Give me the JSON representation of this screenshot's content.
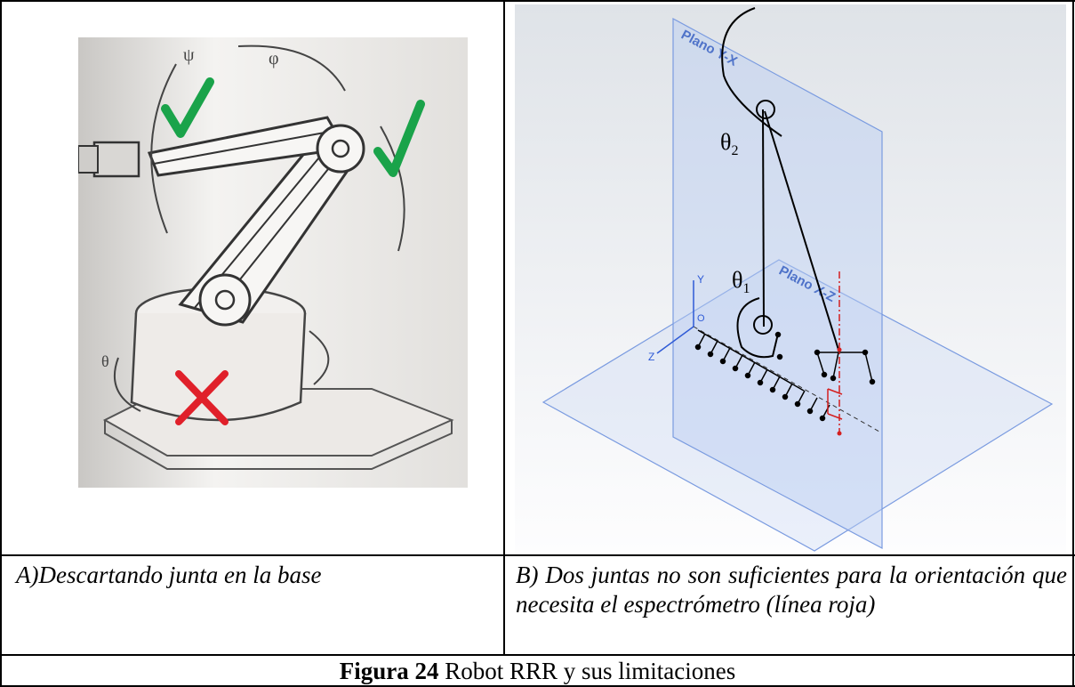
{
  "panel_a": {
    "caption": "A)Descartando junta en la base",
    "labels": {
      "psi": "ψ",
      "phi": "φ",
      "theta": "θ"
    }
  },
  "panel_b": {
    "caption": "B) Dos juntas no son suficientes para la orientación que necesita el espectrómetro (línea roja)",
    "plane_yx_label": "Plano Y-X",
    "plane_xz_label": "Plano X-Z",
    "theta1_label": "θ",
    "theta1_sub": "1",
    "theta2_label": "θ",
    "theta2_sub": "2",
    "axis_y": "Y",
    "axis_z": "Z",
    "origin": "O"
  },
  "figure": {
    "number_label": "Figura 24",
    "title": " Robot RRR y sus limitaciones"
  },
  "colors": {
    "check": "#1aa34a",
    "cross": "#e0202a",
    "plane": "#5b84d6",
    "red_line": "#d41f1f"
  }
}
